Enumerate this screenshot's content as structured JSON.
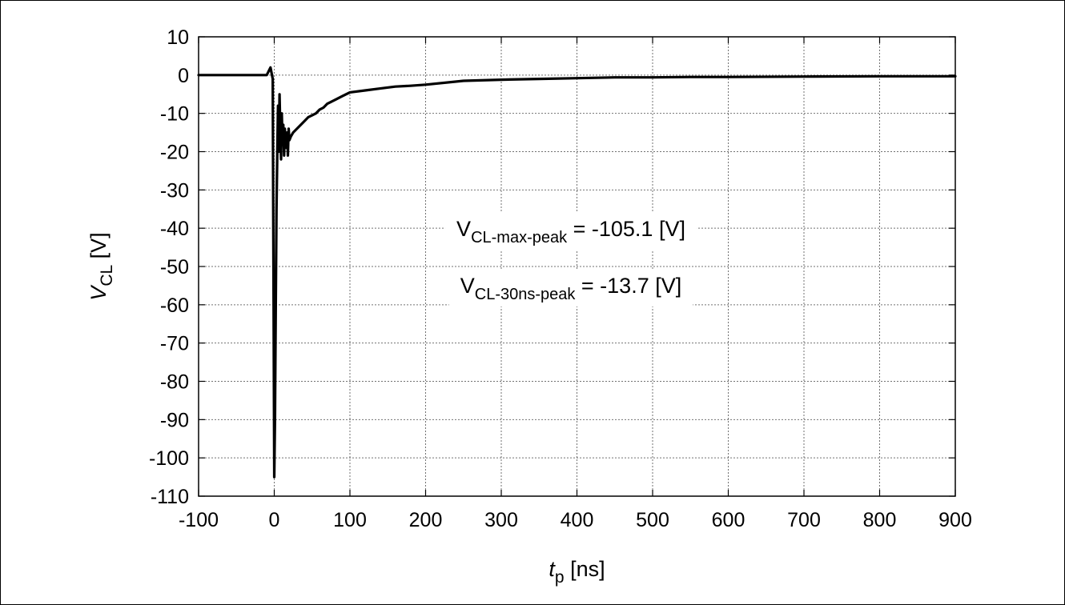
{
  "chart_data": {
    "type": "line",
    "xlabel": {
      "main": "t",
      "sub": "p",
      "unit": " [ns]"
    },
    "ylabel": {
      "main": "V",
      "sub": "CL",
      "unit": " [V]"
    },
    "xlim": [
      -100,
      900
    ],
    "ylim": [
      -110,
      10
    ],
    "xticks": [
      -100,
      0,
      100,
      200,
      300,
      400,
      500,
      600,
      700,
      800,
      900
    ],
    "yticks": [
      10,
      0,
      -10,
      -20,
      -30,
      -40,
      -50,
      -60,
      -70,
      -80,
      -90,
      -100,
      -110
    ],
    "grid": true,
    "series": [
      {
        "color": "#000000",
        "x": [
          -100,
          -50,
          -10,
          -5,
          -2,
          0,
          1,
          2,
          3,
          4,
          5,
          6,
          7,
          8,
          9,
          10,
          11,
          12,
          13,
          14,
          15,
          16,
          17,
          18,
          19,
          20,
          22,
          25,
          30,
          35,
          40,
          45,
          50,
          55,
          60,
          65,
          70,
          75,
          80,
          90,
          100,
          120,
          140,
          160,
          180,
          200,
          250,
          300,
          350,
          400,
          450,
          500,
          550,
          600,
          700,
          800,
          850,
          900
        ],
        "y": [
          0,
          0,
          0,
          2,
          -1,
          -105,
          -90,
          -60,
          -35,
          -20,
          -8,
          -20,
          -5,
          -15,
          -22,
          -10,
          -18,
          -13,
          -21,
          -14,
          -17,
          -19,
          -15,
          -21,
          -14,
          -17,
          -16,
          -15,
          -14,
          -13,
          -12,
          -11,
          -10.5,
          -10,
          -9,
          -8.5,
          -7.5,
          -7,
          -6.5,
          -5.5,
          -4.5,
          -4,
          -3.5,
          -3,
          -2.8,
          -2.5,
          -1.5,
          -1.2,
          -1,
          -0.8,
          -0.6,
          -0.6,
          -0.5,
          -0.5,
          -0.4,
          -0.3,
          -0.3,
          -0.3
        ]
      }
    ],
    "annotations": [
      {
        "main": "V",
        "sub": "CL-max-peak",
        "rest": " = -105.1 [V]"
      },
      {
        "main": "V",
        "sub": "CL-30ns-peak",
        "rest": " = -13.7 [V]"
      }
    ]
  }
}
